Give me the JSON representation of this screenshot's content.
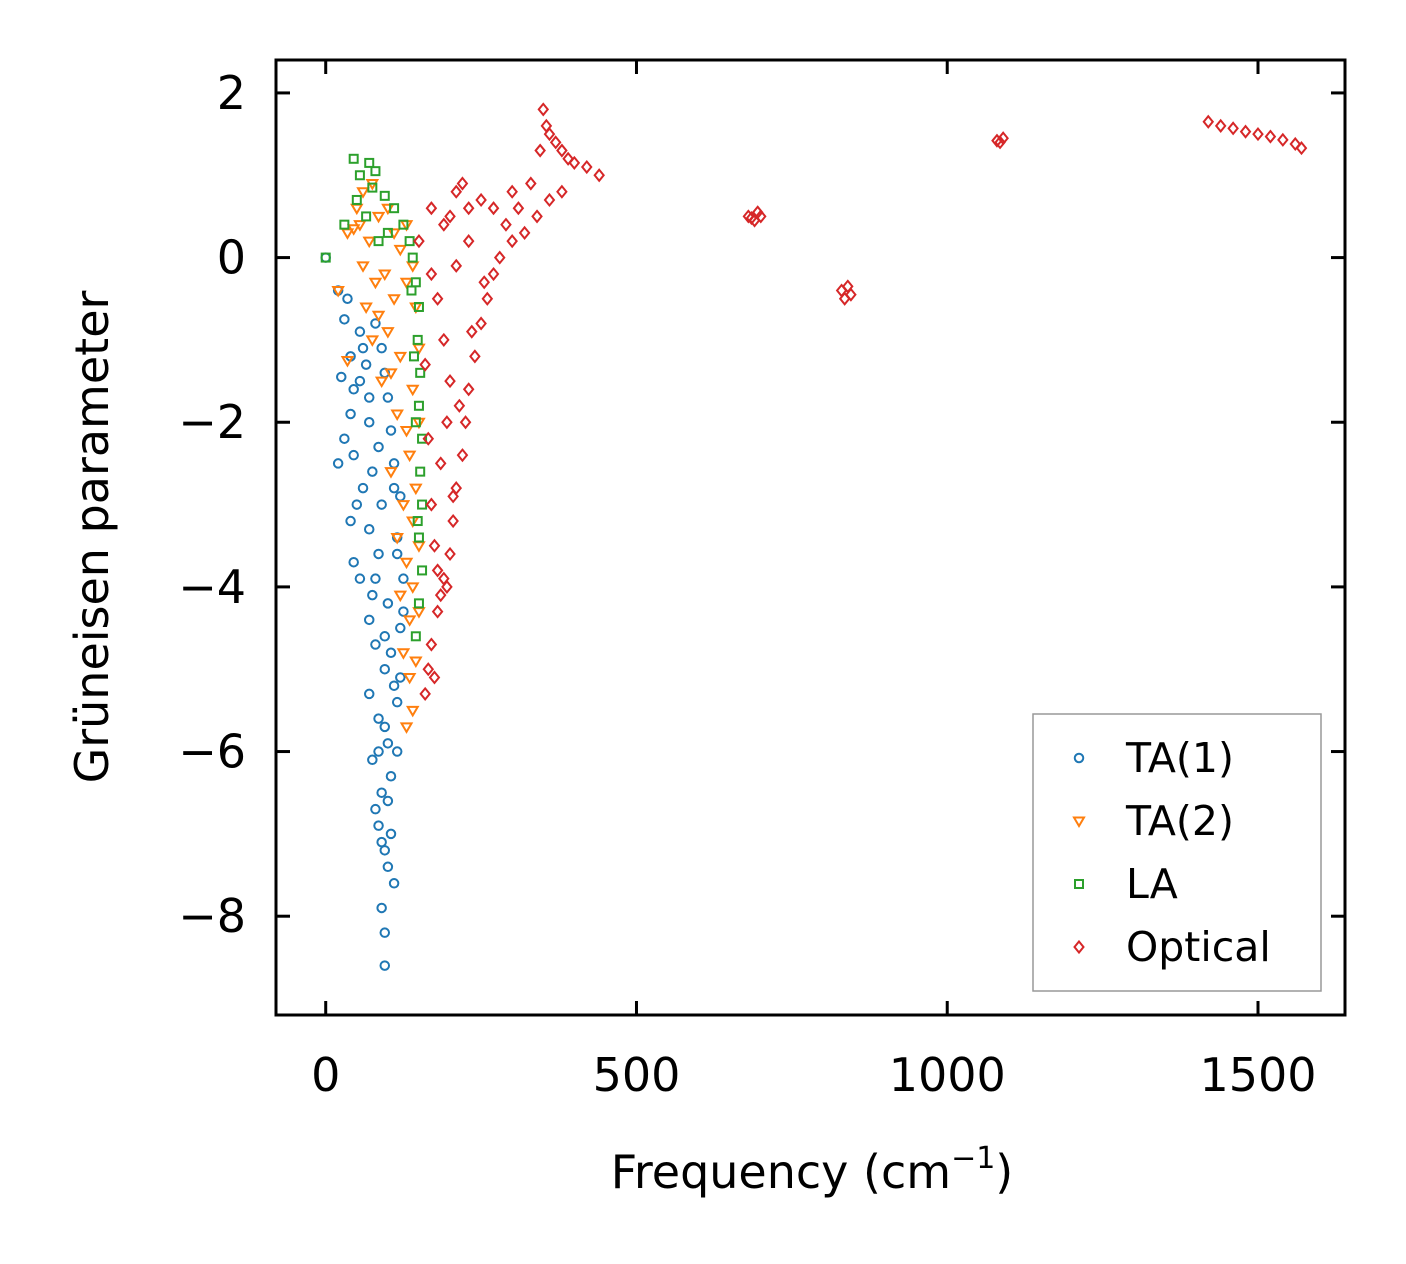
{
  "chart_data": {
    "type": "scatter",
    "title": "",
    "xlabel": "Frequency (cm",
    "xlabel_superscript": "−1",
    "xlabel_suffix": ")",
    "ylabel": "Grüneisen parameter",
    "xlim": [
      -80,
      1640
    ],
    "ylim": [
      -9.2,
      2.4
    ],
    "xticks": [
      0,
      500,
      1000,
      1500
    ],
    "xtick_labels": [
      "0",
      "500",
      "1000",
      "1500"
    ],
    "yticks": [
      2,
      0,
      -2,
      -4,
      -6,
      -8
    ],
    "ytick_labels": [
      "2",
      "0",
      "−2",
      "−4",
      "−6",
      "−8"
    ],
    "legend_position": "lower-right",
    "series": [
      {
        "name": "TA(1)",
        "marker": "circle",
        "color": "#1f77b4",
        "points": [
          [
            0,
            0
          ],
          [
            20,
            -0.4
          ],
          [
            35,
            -0.5
          ],
          [
            30,
            -0.75
          ],
          [
            55,
            -0.9
          ],
          [
            60,
            -1.1
          ],
          [
            40,
            -1.2
          ],
          [
            25,
            -1.45
          ],
          [
            45,
            -1.6
          ],
          [
            70,
            -1.7
          ],
          [
            40,
            -1.9
          ],
          [
            30,
            -2.2
          ],
          [
            20,
            -2.5
          ],
          [
            45,
            -2.4
          ],
          [
            60,
            -2.8
          ],
          [
            50,
            -3.0
          ],
          [
            40,
            -3.2
          ],
          [
            70,
            -3.3
          ],
          [
            45,
            -3.7
          ],
          [
            55,
            -3.9
          ],
          [
            75,
            -4.1
          ],
          [
            70,
            -4.4
          ],
          [
            80,
            -4.7
          ],
          [
            95,
            -5.0
          ],
          [
            70,
            -5.3
          ],
          [
            85,
            -5.6
          ],
          [
            100,
            -5.9
          ],
          [
            75,
            -6.1
          ],
          [
            90,
            -6.5
          ],
          [
            85,
            -6.9
          ],
          [
            95,
            -7.2
          ],
          [
            110,
            -7.6
          ],
          [
            90,
            -7.9
          ],
          [
            95,
            -8.2
          ],
          [
            95,
            -8.6
          ],
          [
            85,
            -6.0
          ],
          [
            105,
            -6.3
          ],
          [
            115,
            -5.4
          ],
          [
            120,
            -4.5
          ],
          [
            125,
            -3.9
          ],
          [
            115,
            -3.4
          ],
          [
            120,
            -2.9
          ],
          [
            110,
            -2.5
          ],
          [
            105,
            -2.1
          ],
          [
            100,
            -1.7
          ],
          [
            95,
            -1.4
          ],
          [
            90,
            -1.1
          ],
          [
            80,
            -0.8
          ],
          [
            110,
            -2.8
          ],
          [
            115,
            -3.6
          ],
          [
            100,
            -4.2
          ],
          [
            105,
            -4.8
          ],
          [
            110,
            -5.2
          ],
          [
            95,
            -5.7
          ],
          [
            100,
            -6.6
          ],
          [
            105,
            -7.0
          ],
          [
            100,
            -7.4
          ],
          [
            90,
            -7.1
          ],
          [
            80,
            -6.7
          ],
          [
            95,
            -4.6
          ],
          [
            85,
            -3.6
          ],
          [
            90,
            -3.0
          ],
          [
            75,
            -2.6
          ],
          [
            85,
            -2.3
          ],
          [
            70,
            -2.0
          ],
          [
            65,
            -1.3
          ],
          [
            55,
            -1.5
          ],
          [
            80,
            -3.9
          ],
          [
            125,
            -4.3
          ],
          [
            120,
            -5.1
          ],
          [
            115,
            -6.0
          ]
        ]
      },
      {
        "name": "TA(2)",
        "marker": "triangle-down",
        "color": "#ff7f0e",
        "points": [
          [
            20,
            -0.4
          ],
          [
            35,
            0.3
          ],
          [
            50,
            0.6
          ],
          [
            60,
            0.8
          ],
          [
            75,
            0.9
          ],
          [
            85,
            0.5
          ],
          [
            100,
            0.6
          ],
          [
            110,
            0.3
          ],
          [
            120,
            0.1
          ],
          [
            70,
            0.2
          ],
          [
            60,
            -0.1
          ],
          [
            80,
            -0.3
          ],
          [
            95,
            -0.2
          ],
          [
            110,
            -0.5
          ],
          [
            130,
            -0.3
          ],
          [
            140,
            -0.1
          ],
          [
            100,
            -0.9
          ],
          [
            120,
            -1.2
          ],
          [
            90,
            -1.5
          ],
          [
            35,
            -1.25
          ],
          [
            115,
            -1.9
          ],
          [
            130,
            -2.1
          ],
          [
            105,
            -2.6
          ],
          [
            125,
            -3.0
          ],
          [
            115,
            -3.4
          ],
          [
            130,
            -3.7
          ],
          [
            120,
            -4.1
          ],
          [
            135,
            -4.4
          ],
          [
            125,
            -4.8
          ],
          [
            135,
            -5.1
          ],
          [
            140,
            -5.5
          ],
          [
            130,
            -5.7
          ],
          [
            65,
            -0.6
          ],
          [
            75,
            -1.0
          ],
          [
            140,
            -1.6
          ],
          [
            135,
            -2.4
          ],
          [
            140,
            -3.2
          ],
          [
            140,
            -4.0
          ],
          [
            145,
            -4.9
          ],
          [
            85,
            -0.7
          ],
          [
            105,
            -1.4
          ],
          [
            45,
            0.35
          ],
          [
            55,
            0.4
          ],
          [
            130,
            0.4
          ],
          [
            145,
            -0.6
          ],
          [
            150,
            -1.1
          ],
          [
            150,
            -2.0
          ],
          [
            145,
            -2.8
          ],
          [
            150,
            -3.5
          ],
          [
            150,
            -4.3
          ]
        ]
      },
      {
        "name": "LA",
        "marker": "square",
        "color": "#2ca02c",
        "points": [
          [
            0,
            0
          ],
          [
            45,
            1.2
          ],
          [
            70,
            1.15
          ],
          [
            80,
            1.05
          ],
          [
            55,
            1.0
          ],
          [
            75,
            0.85
          ],
          [
            95,
            0.75
          ],
          [
            110,
            0.6
          ],
          [
            50,
            0.7
          ],
          [
            30,
            0.4
          ],
          [
            65,
            0.5
          ],
          [
            125,
            0.4
          ],
          [
            135,
            0.2
          ],
          [
            140,
            0.0
          ],
          [
            145,
            -0.3
          ],
          [
            150,
            -0.6
          ],
          [
            148,
            -1.0
          ],
          [
            152,
            -1.4
          ],
          [
            150,
            -1.8
          ],
          [
            155,
            -2.2
          ],
          [
            152,
            -2.6
          ],
          [
            155,
            -3.0
          ],
          [
            150,
            -3.4
          ],
          [
            155,
            -3.8
          ],
          [
            150,
            -4.2
          ],
          [
            145,
            -4.6
          ],
          [
            100,
            0.3
          ],
          [
            85,
            0.2
          ],
          [
            145,
            -2.0
          ],
          [
            148,
            -3.2
          ],
          [
            142,
            -1.2
          ],
          [
            138,
            -0.4
          ]
        ]
      },
      {
        "name": "Optical",
        "marker": "diamond",
        "color": "#d62728",
        "points": [
          [
            150,
            0.2
          ],
          [
            170,
            0.6
          ],
          [
            190,
            0.4
          ],
          [
            210,
            0.8
          ],
          [
            220,
            0.9
          ],
          [
            200,
            0.5
          ],
          [
            230,
            0.6
          ],
          [
            250,
            0.7
          ],
          [
            270,
            0.6
          ],
          [
            300,
            0.8
          ],
          [
            330,
            0.9
          ],
          [
            345,
            1.3
          ],
          [
            350,
            1.8
          ],
          [
            355,
            1.6
          ],
          [
            360,
            1.5
          ],
          [
            370,
            1.4
          ],
          [
            380,
            1.3
          ],
          [
            390,
            1.2
          ],
          [
            400,
            1.15
          ],
          [
            420,
            1.1
          ],
          [
            440,
            1.0
          ],
          [
            380,
            0.8
          ],
          [
            360,
            0.7
          ],
          [
            340,
            0.5
          ],
          [
            320,
            0.3
          ],
          [
            300,
            0.2
          ],
          [
            280,
            0.0
          ],
          [
            270,
            -0.2
          ],
          [
            260,
            -0.5
          ],
          [
            250,
            -0.8
          ],
          [
            240,
            -1.2
          ],
          [
            230,
            -1.6
          ],
          [
            225,
            -2.0
          ],
          [
            220,
            -2.4
          ],
          [
            210,
            -2.8
          ],
          [
            205,
            -3.2
          ],
          [
            200,
            -3.6
          ],
          [
            190,
            -3.9
          ],
          [
            195,
            -4.0
          ],
          [
            180,
            -4.3
          ],
          [
            170,
            -4.7
          ],
          [
            165,
            -5.0
          ],
          [
            175,
            -5.1
          ],
          [
            160,
            -5.3
          ],
          [
            185,
            -2.5
          ],
          [
            200,
            -1.5
          ],
          [
            190,
            -1.0
          ],
          [
            180,
            -0.5
          ],
          [
            170,
            -0.2
          ],
          [
            160,
            -1.3
          ],
          [
            165,
            -2.2
          ],
          [
            170,
            -3.0
          ],
          [
            175,
            -3.5
          ],
          [
            185,
            -4.1
          ],
          [
            215,
            -1.8
          ],
          [
            235,
            -0.9
          ],
          [
            255,
            -0.3
          ],
          [
            290,
            0.4
          ],
          [
            310,
            0.6
          ],
          [
            230,
            0.2
          ],
          [
            210,
            -0.1
          ],
          [
            195,
            -2.0
          ],
          [
            205,
            -2.9
          ],
          [
            180,
            -3.8
          ],
          [
            680,
            0.5
          ],
          [
            690,
            0.45
          ],
          [
            700,
            0.5
          ],
          [
            695,
            0.55
          ],
          [
            685,
            0.48
          ],
          [
            830,
            -0.4
          ],
          [
            840,
            -0.35
          ],
          [
            845,
            -0.45
          ],
          [
            835,
            -0.5
          ],
          [
            1085,
            1.4
          ],
          [
            1090,
            1.45
          ],
          [
            1080,
            1.42
          ],
          [
            1420,
            1.65
          ],
          [
            1440,
            1.6
          ],
          [
            1460,
            1.57
          ],
          [
            1480,
            1.53
          ],
          [
            1500,
            1.5
          ],
          [
            1520,
            1.47
          ],
          [
            1540,
            1.43
          ],
          [
            1560,
            1.38
          ],
          [
            1570,
            1.33
          ]
        ]
      }
    ]
  }
}
